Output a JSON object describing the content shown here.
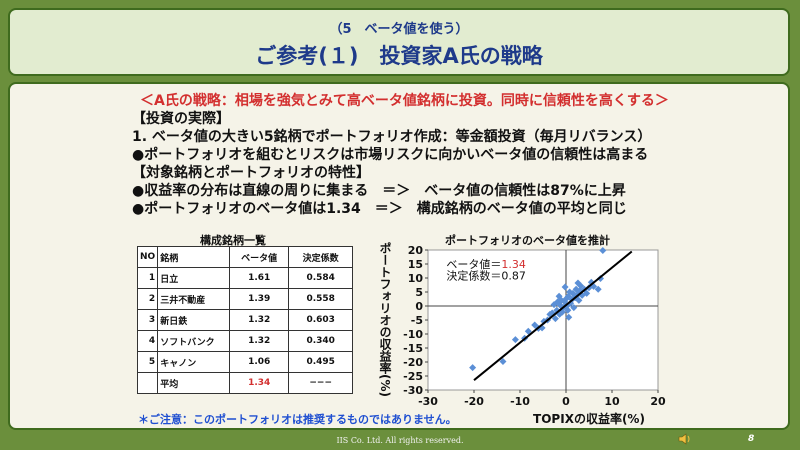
{
  "header": {
    "subtitle": "（5　ベータ値を使う）",
    "title": "ご参考(１)　投資家A氏の戦略"
  },
  "body": {
    "strategy": "＜A氏の戦略：相場を強気とみて高ベータ値銘柄に投資。同時に信頼性を高くする＞",
    "lines": [
      "【投資の実際】",
      "1. ベータ値の大きい5銘柄でポートフォリオ作成：等金額投資（毎月リバランス）",
      "●ポートフォリオを組むとリスクは市場リスクに向かいベータ値の信頼性は高まる",
      "【対象銘柄とポートフォリオの特性】",
      "●収益率の分布は直線の周りに集まる　＝＞　ベータ値の信頼性は87%に上昇",
      "●ポートフォリオのベータ値は1.34　＝＞　構成銘柄のベータ値の平均と同じ"
    ]
  },
  "table": {
    "title": "構成銘柄一覧",
    "headers": [
      "NO",
      "銘柄",
      "ベータ値",
      "決定係数"
    ],
    "rows": [
      {
        "no": "1",
        "name": "日立",
        "beta": "1.61",
        "r2": "0.584"
      },
      {
        "no": "2",
        "name": "三井不動産",
        "beta": "1.39",
        "r2": "0.558"
      },
      {
        "no": "3",
        "name": "新日鉄",
        "beta": "1.32",
        "r2": "0.603"
      },
      {
        "no": "4",
        "name": "ソフトバンク",
        "beta": "1.32",
        "r2": "0.340"
      },
      {
        "no": "5",
        "name": "キャノン",
        "beta": "1.06",
        "r2": "0.495"
      }
    ],
    "average": {
      "label": "平均",
      "beta": "1.34",
      "r2": "−−−"
    }
  },
  "chart_data": {
    "type": "scatter",
    "title": "ポートフォリオのベータ値を推計",
    "xlabel": "TOPIXの収益率(%)",
    "ylabel": "ポートフォリオの収益率(%)",
    "xlim": [
      -30,
      20
    ],
    "ylim": [
      -30,
      20
    ],
    "xticks": [
      "-30",
      "-20",
      "-10",
      "0",
      "10",
      "20"
    ],
    "yticks": [
      "-30",
      "-25",
      "-20",
      "-15",
      "-10",
      "-5",
      "0",
      "5",
      "10",
      "15",
      "20"
    ],
    "grid": false,
    "annotation_beta_label": "ベータ値＝",
    "annotation_beta_value": "1.34",
    "annotation_r2": "決定係数＝0.87",
    "marker_color": "#5b8fd6",
    "line_color": "#000000",
    "fit_line": {
      "slope": 1.34,
      "intercept": 0.3
    },
    "points": [
      [
        -20.3,
        -22.0
      ],
      [
        -13.7,
        -19.8
      ],
      [
        -11.0,
        -12.0
      ],
      [
        -9.0,
        -11.5
      ],
      [
        -8.2,
        -9.0
      ],
      [
        -6.0,
        -8.0
      ],
      [
        -5.2,
        -7.8
      ],
      [
        -4.8,
        -5.5
      ],
      [
        -4.0,
        -5.0
      ],
      [
        -3.5,
        -3.0
      ],
      [
        -3.0,
        -2.5
      ],
      [
        -2.6,
        0.5
      ],
      [
        -2.3,
        -4.5
      ],
      [
        -2.0,
        -1.5
      ],
      [
        -1.8,
        1.5
      ],
      [
        -1.5,
        3.5
      ],
      [
        -1.4,
        -3.0
      ],
      [
        -1.2,
        0.2
      ],
      [
        -1.0,
        2.0
      ],
      [
        -0.8,
        -2.2
      ],
      [
        -0.5,
        -0.5
      ],
      [
        -0.3,
        1.5
      ],
      [
        0.0,
        2.5
      ],
      [
        0.2,
        0.0
      ],
      [
        0.4,
        -1.5
      ],
      [
        0.5,
        3.5
      ],
      [
        0.8,
        5.0
      ],
      [
        1.0,
        1.0
      ],
      [
        1.3,
        2.3
      ],
      [
        1.5,
        4.5
      ],
      [
        1.7,
        -0.6
      ],
      [
        2.0,
        3.0
      ],
      [
        2.2,
        6.0
      ],
      [
        2.5,
        4.0
      ],
      [
        2.8,
        2.0
      ],
      [
        3.0,
        5.5
      ],
      [
        3.2,
        7.2
      ],
      [
        3.5,
        3.8
      ],
      [
        4.0,
        6.0
      ],
      [
        4.5,
        4.5
      ],
      [
        5.0,
        6.5
      ],
      [
        6.0,
        7.0
      ],
      [
        7.0,
        6.0
      ],
      [
        7.5,
        9.8
      ],
      [
        8.0,
        19.8
      ],
      [
        -6.8,
        -6.8
      ],
      [
        -0.2,
        6.8
      ],
      [
        2.6,
        8.2
      ],
      [
        0.6,
        -4.0
      ],
      [
        5.5,
        8.5
      ]
    ]
  },
  "footer": {
    "note": "＊ご注意：このポートフォリオは推奨するものではありません。",
    "copyright": "IIS Co. Ltd. All rights reserved.",
    "page": "8"
  }
}
